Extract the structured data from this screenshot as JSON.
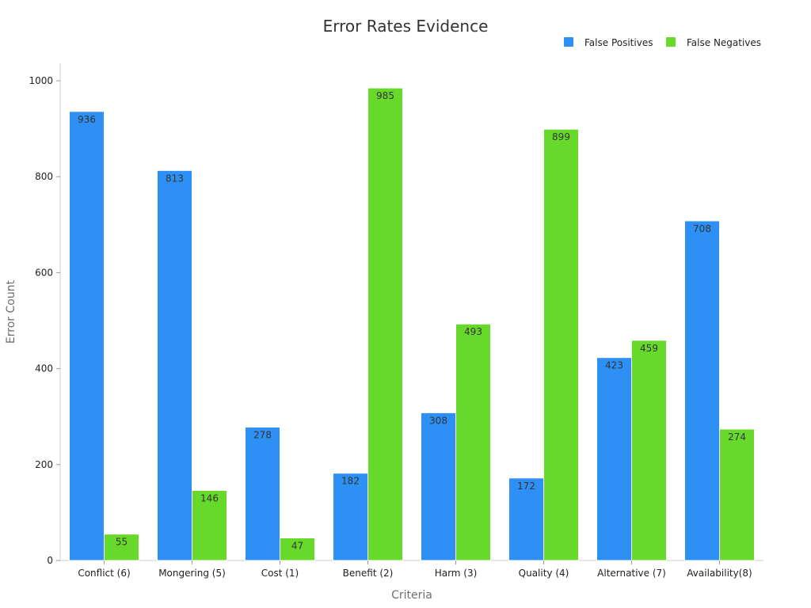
{
  "chart_data": {
    "type": "bar",
    "title": "Error Rates Evidence",
    "xlabel": "Criteria",
    "ylabel": "Error Count",
    "categories": [
      "Conflict (6)",
      "Mongering (5)",
      "Cost (1)",
      "Benefit (2)",
      "Harm (3)",
      "Quality (4)",
      "Alternative (7)",
      "Availability(8)"
    ],
    "series": [
      {
        "name": "False Positives",
        "color": "#2e90f5",
        "values": [
          936,
          813,
          278,
          182,
          308,
          172,
          423,
          708
        ]
      },
      {
        "name": "False Negatives",
        "color": "#66d92a",
        "values": [
          55,
          146,
          47,
          985,
          493,
          899,
          459,
          274
        ]
      }
    ],
    "ylim": [
      0,
      1000
    ],
    "yticks": [
      0,
      200,
      400,
      600,
      800,
      1000
    ],
    "legend_position": "top-right",
    "grid": false
  }
}
